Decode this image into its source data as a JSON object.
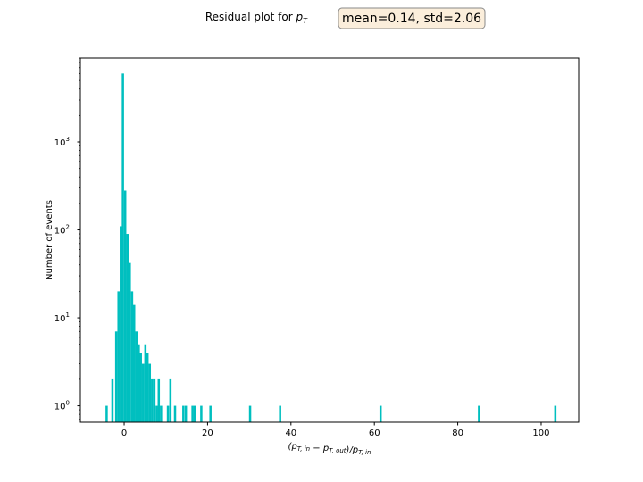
{
  "chart_data": {
    "type": "bar",
    "title_prefix": "Residual plot for ",
    "title_math": {
      "base": "p",
      "sub": "T"
    },
    "stats_box": "mean=0.14, std=2.06",
    "xlabel_parts": [
      {
        "text": "(p",
        "sub": "T, in"
      },
      {
        "text": " − p",
        "sub": "T, out"
      },
      {
        "text": ")/p",
        "sub": "T, in"
      }
    ],
    "ylabel": "Number of events",
    "yscale": "log",
    "xlim": [
      -10.5,
      109
    ],
    "ylim": [
      0.65,
      9000
    ],
    "xticks": [
      0,
      20,
      40,
      60,
      80,
      100
    ],
    "yticks": [
      {
        "value": 1,
        "label": "10",
        "exp": "0"
      },
      {
        "value": 10,
        "label": "10",
        "exp": "1"
      },
      {
        "value": 100,
        "label": "10",
        "exp": "2"
      },
      {
        "value": 1000,
        "label": "10",
        "exp": "3"
      }
    ],
    "bin_width": 0.54,
    "bar_color": "#00bfbf",
    "grid": false,
    "bins": [
      {
        "x": -4.2,
        "count": 1
      },
      {
        "x": -2.8,
        "count": 2
      },
      {
        "x": -1.9,
        "count": 7
      },
      {
        "x": -1.35,
        "count": 20
      },
      {
        "x": -0.8,
        "count": 110
      },
      {
        "x": -0.3,
        "count": 6000
      },
      {
        "x": 0.25,
        "count": 280
      },
      {
        "x": 0.8,
        "count": 90
      },
      {
        "x": 1.35,
        "count": 42
      },
      {
        "x": 1.9,
        "count": 20
      },
      {
        "x": 2.4,
        "count": 14
      },
      {
        "x": 2.95,
        "count": 7
      },
      {
        "x": 3.5,
        "count": 5
      },
      {
        "x": 4.0,
        "count": 4
      },
      {
        "x": 4.55,
        "count": 3
      },
      {
        "x": 5.1,
        "count": 5
      },
      {
        "x": 5.6,
        "count": 4
      },
      {
        "x": 6.15,
        "count": 3
      },
      {
        "x": 6.7,
        "count": 2
      },
      {
        "x": 7.25,
        "count": 2
      },
      {
        "x": 7.8,
        "count": 1
      },
      {
        "x": 8.3,
        "count": 2
      },
      {
        "x": 8.85,
        "count": 1
      },
      {
        "x": 10.5,
        "count": 1
      },
      {
        "x": 11.1,
        "count": 2
      },
      {
        "x": 12.2,
        "count": 1
      },
      {
        "x": 14.2,
        "count": 1
      },
      {
        "x": 14.8,
        "count": 1
      },
      {
        "x": 16.4,
        "count": 1
      },
      {
        "x": 16.9,
        "count": 1
      },
      {
        "x": 18.5,
        "count": 1
      },
      {
        "x": 20.7,
        "count": 1
      },
      {
        "x": 30.2,
        "count": 1
      },
      {
        "x": 37.4,
        "count": 1
      },
      {
        "x": 61.5,
        "count": 1
      },
      {
        "x": 85.1,
        "count": 1
      },
      {
        "x": 103.4,
        "count": 1
      }
    ]
  }
}
